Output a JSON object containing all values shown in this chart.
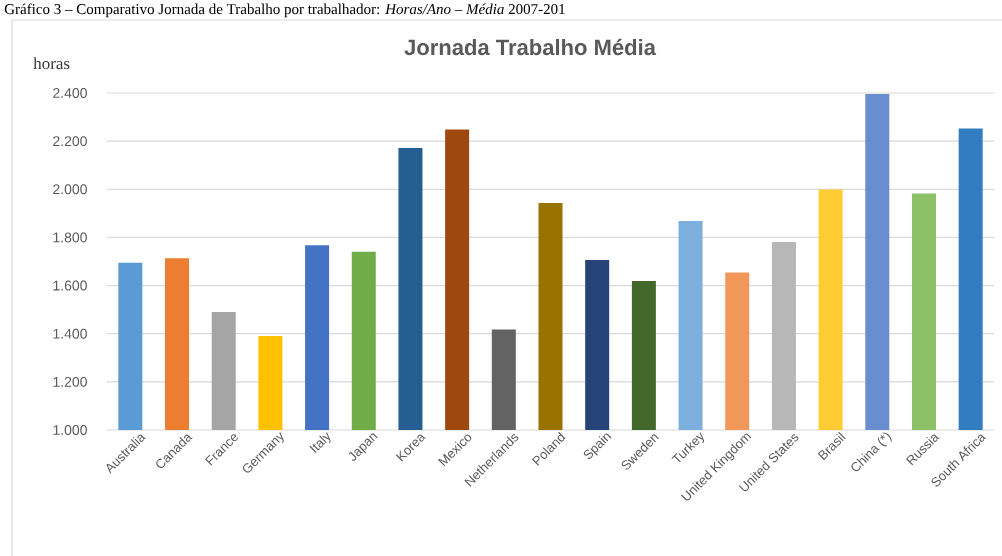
{
  "chart_data": {
    "type": "bar",
    "title": "Jornada Trabalho Média",
    "ylabel": "horas",
    "annotations": [
      "Gráfico 3 – Comparativo Jornada de Trabalho por trabalhador: *Horas/Ano – Média* 2007-201"
    ],
    "categories": [
      "Australia",
      "Canada",
      "France",
      "Germany",
      "Italy",
      "Japan",
      "Korea",
      "Mexico",
      "Netherlands",
      "Poland",
      "Spain",
      "Sweden",
      "Turkey",
      "United Kingdom",
      "United States",
      "Brasil",
      "China (*)",
      "Russia",
      "South Africa"
    ],
    "values": [
      1695,
      1713,
      1490,
      1390,
      1767,
      1740,
      2172,
      2248,
      1417,
      1943,
      1706,
      1619,
      1868,
      1654,
      1781,
      1999,
      2396,
      1982,
      2252
    ],
    "colors": [
      "#5b9bd5",
      "#ed7d31",
      "#a5a5a5",
      "#ffc000",
      "#4472c4",
      "#70ad47",
      "#255e91",
      "#9e480e",
      "#636363",
      "#997300",
      "#264478",
      "#43682b",
      "#7cafdd",
      "#f1975a",
      "#b7b7b7",
      "#ffcd33",
      "#698ed0",
      "#8cc168",
      "#327dc2"
    ],
    "ylim": [
      1000,
      2400
    ],
    "yticks": [
      {
        "value": 1000,
        "label": "1.000"
      },
      {
        "value": 1200,
        "label": "1.200"
      },
      {
        "value": 1400,
        "label": "1.400"
      },
      {
        "value": 1600,
        "label": "1.600"
      },
      {
        "value": 1800,
        "label": "1.800"
      },
      {
        "value": 2000,
        "label": "2.000"
      },
      {
        "value": 2200,
        "label": "2.200"
      },
      {
        "value": 2400,
        "label": "2.400"
      }
    ],
    "grid": "y"
  }
}
